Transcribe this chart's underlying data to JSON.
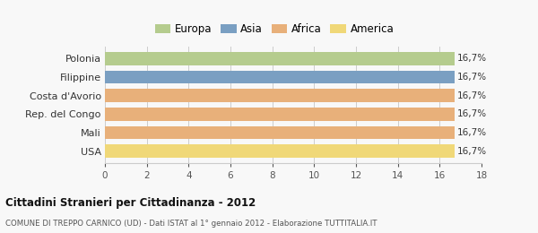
{
  "categories": [
    "Polonia",
    "Filippine",
    "Costa d'Avorio",
    "Rep. del Congo",
    "Mali",
    "USA"
  ],
  "values": [
    16.7,
    16.7,
    16.7,
    16.7,
    16.7,
    16.7
  ],
  "bar_colors": [
    "#b5cc8e",
    "#7a9fc2",
    "#e8b07a",
    "#e8b07a",
    "#e8b07a",
    "#f0d878"
  ],
  "bar_labels": [
    "16,7%",
    "16,7%",
    "16,7%",
    "16,7%",
    "16,7%",
    "16,7%"
  ],
  "legend_labels": [
    "Europa",
    "Asia",
    "Africa",
    "America"
  ],
  "legend_colors": [
    "#b5cc8e",
    "#7a9fc2",
    "#e8b07a",
    "#f0d878"
  ],
  "xlim": [
    0,
    18
  ],
  "xticks": [
    0,
    2,
    4,
    6,
    8,
    10,
    12,
    14,
    16,
    18
  ],
  "title": "Cittadini Stranieri per Cittadinanza - 2012",
  "subtitle": "COMUNE DI TREPPO CARNICO (UD) - Dati ISTAT al 1° gennaio 2012 - Elaborazione TUTTITALIA.IT",
  "background_color": "#f8f8f8",
  "grid_color": "#cccccc"
}
